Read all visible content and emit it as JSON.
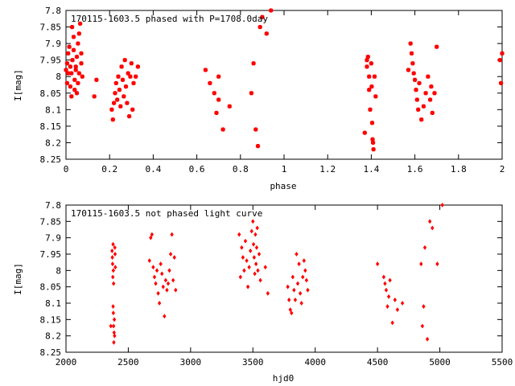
{
  "chart_data": [
    {
      "type": "scatter",
      "title": "170115-1603.5 phased with P=1708.0day",
      "xlabel": "phase",
      "ylabel": "I[mag]",
      "xlim": [
        0,
        2
      ],
      "ylim": [
        8.25,
        7.8
      ],
      "y_inverted": true,
      "grid": false,
      "color": "#ff0000",
      "marker": "asterisk",
      "x_ticks": [
        "0",
        "0.2",
        "0.4",
        "0.6",
        "0.8",
        "1",
        "1.2",
        "1.4",
        "1.6",
        "1.8",
        "2"
      ],
      "y_ticks": [
        "7.8",
        "7.85",
        "7.9",
        "7.95",
        "8",
        "8.05",
        "8.1",
        "8.15",
        "8.2",
        "8.25"
      ],
      "series": [
        {
          "x": [
            0.0,
            0.005,
            0.01,
            0.015,
            0.02,
            0.025,
            0.028,
            0.03,
            0.035,
            0.04,
            0.04,
            0.045,
            0.05,
            0.055,
            0.06,
            0.065,
            0.07,
            0.05,
            0.055,
            0.06,
            0.07,
            0.075,
            0.02,
            0.025,
            0.035,
            0.045,
            0.005,
            0.01,
            0.13,
            0.14,
            0.21,
            0.215,
            0.22,
            0.225,
            0.23,
            0.235,
            0.24,
            0.245,
            0.25,
            0.255,
            0.26,
            0.265,
            0.27,
            0.275,
            0.28,
            0.285,
            0.29,
            0.295,
            0.3,
            0.305,
            0.31,
            0.32,
            0.33,
            0.64,
            0.66,
            0.68,
            0.69,
            0.7,
            0.72,
            0.75,
            0.7,
            0.85,
            0.86,
            0.87,
            0.88,
            0.89,
            0.9,
            0.92,
            0.94,
            1.37,
            1.38,
            1.385,
            1.39,
            1.395,
            1.4,
            1.402,
            1.404,
            1.406,
            1.408,
            1.41,
            1.415,
            1.42,
            1.38,
            1.39,
            1.57,
            1.58,
            1.585,
            1.59,
            1.595,
            1.6,
            1.605,
            1.61,
            1.615,
            1.62,
            1.63,
            1.64,
            1.65,
            1.66,
            1.67,
            1.675,
            1.68,
            1.69,
            1.7,
            1.99,
            2.0,
            1.995
          ],
          "y": [
            7.98,
            7.96,
            7.93,
            7.91,
            7.97,
            7.99,
            7.85,
            7.95,
            7.92,
            8.01,
            8.04,
            7.97,
            7.94,
            7.9,
            7.87,
            7.84,
            7.96,
            8.05,
            8.02,
            7.99,
            7.93,
            8.0,
            8.03,
            8.06,
            7.88,
            7.98,
            8.02,
            7.99,
            8.06,
            8.01,
            8.1,
            8.13,
            8.08,
            8.05,
            8.02,
            8.07,
            8.0,
            8.04,
            8.09,
            7.97,
            8.01,
            8.06,
            7.95,
            8.03,
            8.08,
            7.99,
            8.12,
            8.0,
            7.96,
            8.1,
            8.02,
            8.0,
            7.97,
            7.98,
            8.02,
            8.05,
            8.11,
            8.0,
            8.16,
            8.09,
            8.07,
            8.05,
            7.96,
            8.16,
            8.21,
            7.85,
            7.82,
            7.87,
            7.8,
            8.17,
            7.97,
            7.94,
            8.04,
            8.1,
            7.96,
            8.03,
            8.14,
            8.19,
            8.2,
            8.22,
            8.0,
            8.06,
            7.95,
            8.0,
            7.98,
            7.9,
            7.93,
            7.96,
            7.99,
            8.01,
            8.04,
            8.07,
            8.1,
            8.02,
            8.13,
            8.09,
            8.05,
            8.0,
            8.07,
            8.03,
            8.11,
            8.05,
            7.91,
            7.95,
            7.93,
            8.02
          ]
        }
      ]
    },
    {
      "type": "scatter",
      "title": "170115-1603.5 not phased light curve",
      "xlabel": "hjd0",
      "ylabel": "I[mag]",
      "xlim": [
        2000,
        5500
      ],
      "ylim": [
        8.25,
        7.8
      ],
      "y_inverted": true,
      "grid": false,
      "color": "#ff0000",
      "marker": "diamond",
      "x_ticks": [
        "2000",
        "2500",
        "3000",
        "3500",
        "4000",
        "4500",
        "5000",
        "5500"
      ],
      "y_ticks": [
        "7.8",
        "7.85",
        "7.9",
        "7.95",
        "8",
        "8.05",
        "8.1",
        "8.15",
        "8.2",
        "8.25"
      ],
      "series": [
        {
          "x": [
            2360,
            2370,
            2372,
            2374,
            2376,
            2378,
            2380,
            2382,
            2384,
            2386,
            2388,
            2390,
            2392,
            2394,
            2396,
            2378,
            2380,
            2382,
            2670,
            2680,
            2690,
            2700,
            2710,
            2720,
            2730,
            2740,
            2750,
            2760,
            2770,
            2780,
            2790,
            2800,
            2810,
            2820,
            2830,
            2840,
            2850,
            2860,
            2870,
            2880,
            3390,
            3400,
            3410,
            3420,
            3430,
            3440,
            3450,
            3460,
            3470,
            3480,
            3490,
            3500,
            3505,
            3510,
            3515,
            3520,
            3525,
            3530,
            3535,
            3540,
            3550,
            3560,
            3600,
            3620,
            3780,
            3790,
            3800,
            3810,
            3820,
            3830,
            3840,
            3850,
            3860,
            3870,
            3880,
            3890,
            3900,
            3910,
            3920,
            3930,
            3940,
            4500,
            4550,
            4560,
            4570,
            4580,
            4590,
            4600,
            4620,
            4640,
            4660,
            4700,
            4850,
            4860,
            4870,
            4880,
            4900,
            4920,
            4940,
            4980,
            5020
          ],
          "y": [
            8.17,
            7.94,
            7.96,
            7.98,
            8.02,
            8.11,
            8.13,
            8.17,
            8.22,
            8.19,
            8.15,
            8.2,
            7.93,
            7.95,
            7.99,
            7.92,
            8.0,
            8.04,
            7.97,
            7.9,
            7.89,
            7.99,
            8.02,
            8.04,
            8.0,
            8.07,
            8.1,
            7.98,
            8.01,
            8.05,
            8.14,
            8.03,
            8.06,
            8.04,
            8.0,
            7.95,
            7.89,
            8.03,
            7.96,
            8.06,
            7.89,
            8.02,
            7.93,
            7.96,
            8.0,
            7.91,
            7.97,
            8.05,
            7.99,
            7.94,
            7.88,
            7.85,
            7.92,
            7.96,
            8.01,
            7.89,
            7.98,
            7.93,
            7.87,
            8.0,
            7.95,
            8.03,
            7.99,
            8.07,
            8.05,
            8.09,
            8.12,
            8.13,
            8.02,
            8.06,
            8.09,
            7.95,
            8.04,
            7.98,
            8.07,
            8.1,
            8.02,
            7.97,
            8.0,
            8.03,
            8.06,
            7.98,
            8.02,
            8.04,
            8.06,
            8.11,
            8.08,
            8.03,
            8.16,
            8.09,
            8.12,
            8.1,
            7.98,
            8.17,
            8.11,
            7.93,
            8.21,
            7.85,
            7.87,
            7.98,
            7.8
          ]
        }
      ]
    }
  ]
}
